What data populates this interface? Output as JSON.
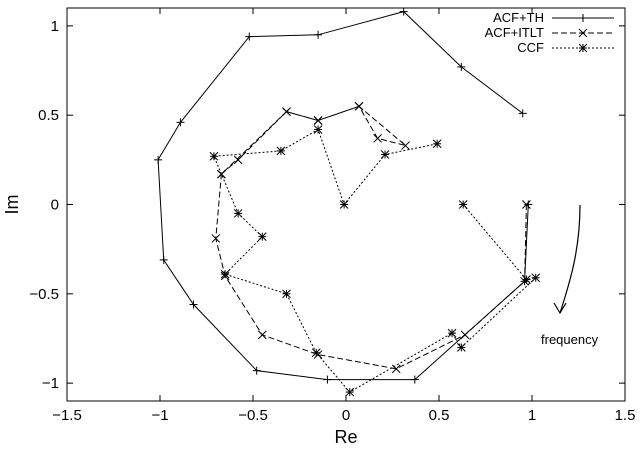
{
  "chart_data": {
    "type": "line",
    "title": "",
    "xlabel": "Re",
    "ylabel": "Im",
    "xlim": [
      -1.5,
      1.5
    ],
    "ylim": [
      -1.1,
      1.1
    ],
    "xticks": [
      -1.5,
      -1,
      -0.5,
      0,
      0.5,
      1,
      1.5
    ],
    "yticks": [
      -1,
      -0.5,
      0,
      0.5,
      1
    ],
    "xtick_labels": [
      "−1.5",
      "−1",
      "−0.5",
      "0",
      "0.5",
      "1",
      "1.5"
    ],
    "ytick_labels": [
      "−1",
      "−0.5",
      "0",
      "0.5",
      "1"
    ],
    "grid": false,
    "legend_position": "top-right",
    "series": [
      {
        "name": "ACF+TH",
        "marker": "plus",
        "dash": "solid",
        "points": [
          [
            0.95,
            0.51
          ],
          [
            0.62,
            0.77
          ],
          [
            0.31,
            1.08
          ],
          [
            -0.15,
            0.95
          ],
          [
            -0.52,
            0.94
          ],
          [
            -0.89,
            0.46
          ],
          [
            -1.01,
            0.25
          ],
          [
            -0.98,
            -0.31
          ],
          [
            -0.82,
            -0.56
          ],
          [
            -0.48,
            -0.93
          ],
          [
            -0.1,
            -0.98
          ],
          [
            0.37,
            -0.98
          ],
          [
            0.96,
            -0.43
          ],
          [
            0.98,
            0.0
          ]
        ]
      },
      {
        "name": "ACF+ITLT",
        "marker": "x",
        "dash": "dashed",
        "points": [
          [
            -0.67,
            0.17
          ],
          [
            -0.58,
            0.25
          ],
          [
            -0.32,
            0.52
          ],
          [
            -0.15,
            0.47
          ],
          [
            0.07,
            0.55
          ],
          [
            0.17,
            0.37
          ],
          [
            0.32,
            0.33
          ],
          [
            0.07,
            0.55
          ],
          [
            -0.15,
            0.47
          ],
          [
            -0.32,
            0.52
          ],
          [
            -0.67,
            0.17
          ],
          [
            -0.7,
            -0.19
          ],
          [
            -0.65,
            -0.4
          ],
          [
            -0.45,
            -0.73
          ],
          [
            -0.15,
            -0.84
          ],
          [
            0.27,
            -0.92
          ],
          [
            0.64,
            -0.73
          ],
          [
            0.96,
            -0.43
          ],
          [
            0.97,
            0.0
          ]
        ]
      },
      {
        "name": "CCF",
        "marker": "star",
        "dash": "dotted",
        "points": [
          [
            0.63,
            0.0
          ],
          [
            0.97,
            -0.42
          ],
          [
            1.02,
            -0.41
          ],
          [
            0.62,
            -0.8
          ],
          [
            0.57,
            -0.72
          ],
          [
            0.02,
            -1.05
          ],
          [
            -0.16,
            -0.83
          ],
          [
            -0.32,
            -0.5
          ],
          [
            -0.65,
            -0.39
          ],
          [
            -0.45,
            -0.18
          ],
          [
            -0.58,
            -0.05
          ],
          [
            -0.71,
            0.27
          ],
          [
            -0.35,
            0.3
          ],
          [
            -0.15,
            0.42
          ],
          [
            -0.01,
            0.0
          ],
          [
            0.21,
            0.28
          ],
          [
            0.49,
            0.34
          ]
        ]
      }
    ],
    "annotations": [
      {
        "text": "frequency",
        "arrow": "curved arrow pointing down"
      }
    ]
  }
}
